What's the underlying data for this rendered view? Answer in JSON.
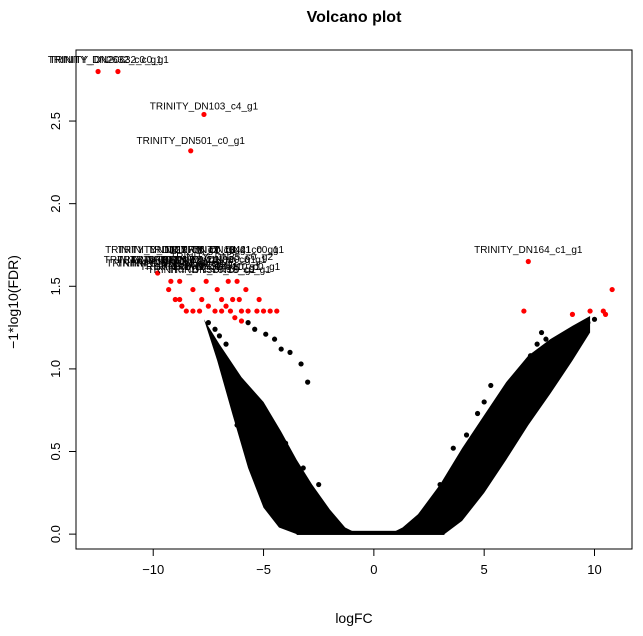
{
  "chart_data": {
    "type": "scatter",
    "title": "Volcano plot",
    "xlabel": "logFC",
    "ylabel": "−1*log10(FDR)",
    "xlim": [
      -13.5,
      11.7
    ],
    "ylim": [
      -0.09,
      2.93
    ],
    "xticks": [
      -10,
      -5,
      0,
      5,
      10
    ],
    "yticks": [
      0.0,
      0.5,
      1.0,
      1.5,
      2.0,
      2.5
    ],
    "xtick_labels": [
      "−10",
      "−5",
      "0",
      "5",
      "10"
    ],
    "ytick_labels": [
      "0.0",
      "0.5",
      "1.0",
      "1.5",
      "2.0",
      "2.5"
    ],
    "grid": false,
    "legend": "none",
    "colors": {
      "significant": "#ff0000",
      "nonsignificant": "#000000"
    },
    "significant_points": [
      {
        "x": -12.5,
        "y": 2.8
      },
      {
        "x": -11.6,
        "y": 2.8
      },
      {
        "x": -7.7,
        "y": 2.54
      },
      {
        "x": -8.3,
        "y": 2.32
      },
      {
        "x": 7.0,
        "y": 1.65
      },
      {
        "x": -9.8,
        "y": 1.58
      },
      {
        "x": -9.2,
        "y": 1.53
      },
      {
        "x": -8.8,
        "y": 1.53
      },
      {
        "x": -7.6,
        "y": 1.53
      },
      {
        "x": -6.6,
        "y": 1.53
      },
      {
        "x": -6.2,
        "y": 1.53
      },
      {
        "x": -9.3,
        "y": 1.48
      },
      {
        "x": -8.2,
        "y": 1.48
      },
      {
        "x": -7.1,
        "y": 1.48
      },
      {
        "x": -5.8,
        "y": 1.48
      },
      {
        "x": -9.0,
        "y": 1.42
      },
      {
        "x": -8.8,
        "y": 1.42
      },
      {
        "x": -7.8,
        "y": 1.42
      },
      {
        "x": -6.9,
        "y": 1.42
      },
      {
        "x": -6.4,
        "y": 1.42
      },
      {
        "x": -6.1,
        "y": 1.42
      },
      {
        "x": -5.2,
        "y": 1.42
      },
      {
        "x": -8.7,
        "y": 1.38
      },
      {
        "x": -7.5,
        "y": 1.38
      },
      {
        "x": -6.7,
        "y": 1.38
      },
      {
        "x": -8.5,
        "y": 1.35
      },
      {
        "x": -8.2,
        "y": 1.35
      },
      {
        "x": -7.9,
        "y": 1.35
      },
      {
        "x": -7.2,
        "y": 1.35
      },
      {
        "x": -6.9,
        "y": 1.35
      },
      {
        "x": -6.5,
        "y": 1.35
      },
      {
        "x": -6.0,
        "y": 1.35
      },
      {
        "x": -5.7,
        "y": 1.35
      },
      {
        "x": -5.3,
        "y": 1.35
      },
      {
        "x": -5.0,
        "y": 1.35
      },
      {
        "x": -4.7,
        "y": 1.35
      },
      {
        "x": -4.4,
        "y": 1.35
      },
      {
        "x": -6.3,
        "y": 1.31
      },
      {
        "x": -6.0,
        "y": 1.29
      },
      {
        "x": 6.8,
        "y": 1.35
      },
      {
        "x": 9.0,
        "y": 1.33
      },
      {
        "x": 9.8,
        "y": 1.35
      },
      {
        "x": 10.4,
        "y": 1.35
      },
      {
        "x": 10.5,
        "y": 1.33
      },
      {
        "x": 10.8,
        "y": 1.48
      }
    ],
    "nonsignificant_outliers": [
      {
        "x": -7.5,
        "y": 1.28
      },
      {
        "x": -7.2,
        "y": 1.24
      },
      {
        "x": -7.0,
        "y": 1.2
      },
      {
        "x": -6.7,
        "y": 1.15
      },
      {
        "x": -5.7,
        "y": 1.28
      },
      {
        "x": -5.4,
        "y": 1.24
      },
      {
        "x": -4.9,
        "y": 1.21
      },
      {
        "x": -4.5,
        "y": 1.18
      },
      {
        "x": -4.2,
        "y": 1.12
      },
      {
        "x": -3.8,
        "y": 1.1
      },
      {
        "x": -3.3,
        "y": 1.03
      },
      {
        "x": -3.0,
        "y": 0.92
      },
      {
        "x": -6.2,
        "y": 0.66
      },
      {
        "x": -5.5,
        "y": 0.66
      },
      {
        "x": -5.0,
        "y": 0.6
      },
      {
        "x": -4.0,
        "y": 0.55
      },
      {
        "x": -3.2,
        "y": 0.4
      },
      {
        "x": -2.5,
        "y": 0.3
      },
      {
        "x": 3.0,
        "y": 0.3
      },
      {
        "x": 2.6,
        "y": 0.15
      },
      {
        "x": 3.6,
        "y": 0.52
      },
      {
        "x": 4.2,
        "y": 0.6
      },
      {
        "x": 4.0,
        "y": 0.36
      },
      {
        "x": 5.0,
        "y": 0.5
      },
      {
        "x": 5.5,
        "y": 0.72
      },
      {
        "x": 5.8,
        "y": 0.82
      },
      {
        "x": 6.0,
        "y": 0.75
      },
      {
        "x": 6.3,
        "y": 0.88
      },
      {
        "x": 6.6,
        "y": 0.95
      },
      {
        "x": 6.9,
        "y": 1.02
      },
      {
        "x": 7.1,
        "y": 1.08
      },
      {
        "x": 7.4,
        "y": 1.15
      },
      {
        "x": 7.6,
        "y": 1.22
      },
      {
        "x": 7.8,
        "y": 1.18
      },
      {
        "x": 8.0,
        "y": 1.05
      },
      {
        "x": 8.4,
        "y": 1.0
      },
      {
        "x": 8.7,
        "y": 1.08
      },
      {
        "x": 8.9,
        "y": 1.12
      },
      {
        "x": 9.2,
        "y": 1.22
      },
      {
        "x": 9.4,
        "y": 1.25
      },
      {
        "x": 9.7,
        "y": 1.28
      },
      {
        "x": 10.0,
        "y": 1.3
      },
      {
        "x": 5.3,
        "y": 0.9
      },
      {
        "x": 5.0,
        "y": 0.8
      },
      {
        "x": 4.7,
        "y": 0.73
      },
      {
        "x": 7.3,
        "y": 0.98
      },
      {
        "x": 7.7,
        "y": 1.1
      },
      {
        "x": 8.2,
        "y": 1.15
      },
      {
        "x": -2.8,
        "y": 0.2
      },
      {
        "x": 2.2,
        "y": 0.08
      }
    ],
    "envelope": {
      "note_left_upper": "upper boundary of dense region, left side",
      "left_upper": [
        [
          -7.7,
          1.3
        ],
        [
          -7.0,
          1.15
        ],
        [
          -6.0,
          0.95
        ],
        [
          -5.0,
          0.8
        ],
        [
          -4.2,
          0.62
        ],
        [
          -3.5,
          0.45
        ],
        [
          -2.8,
          0.3
        ],
        [
          -2.0,
          0.15
        ],
        [
          -1.3,
          0.04
        ],
        [
          -0.7,
          0.0
        ]
      ],
      "left_lower": [
        [
          -7.7,
          1.3
        ],
        [
          -7.1,
          1.05
        ],
        [
          -6.4,
          0.72
        ],
        [
          -5.7,
          0.4
        ],
        [
          -5.0,
          0.16
        ],
        [
          -4.3,
          0.04
        ],
        [
          -3.5,
          0.0
        ]
      ],
      "right_upper": [
        [
          0.7,
          0.0
        ],
        [
          1.3,
          0.04
        ],
        [
          2.0,
          0.12
        ],
        [
          3.0,
          0.3
        ],
        [
          4.0,
          0.52
        ],
        [
          5.0,
          0.72
        ],
        [
          6.0,
          0.92
        ],
        [
          7.0,
          1.08
        ],
        [
          8.0,
          1.18
        ],
        [
          9.0,
          1.26
        ],
        [
          9.8,
          1.32
        ]
      ],
      "right_lower": [
        [
          3.2,
          0.0
        ],
        [
          4.0,
          0.08
        ],
        [
          5.0,
          0.25
        ],
        [
          6.0,
          0.45
        ],
        [
          7.0,
          0.66
        ],
        [
          8.0,
          0.85
        ],
        [
          9.0,
          1.05
        ],
        [
          9.8,
          1.22
        ]
      ]
    },
    "annotations": [
      {
        "text": "TRINITY_DN2632_c0_g1",
        "x": -12.2,
        "y": 2.85
      },
      {
        "text": "TRINITY_DN20632_c0_g1",
        "x": -12.0,
        "y": 2.85
      },
      {
        "text": "TRINITY_DN103_c4_g1",
        "x": -7.7,
        "y": 2.57
      },
      {
        "text": "TRINITY_DN501_c0_g1",
        "x": -8.3,
        "y": 2.36
      },
      {
        "text": "TRINITY_DN164_c1_g1",
        "x": 7.0,
        "y": 1.7
      },
      {
        "text": "TRINITY_DN1327_c0_g1",
        "x": -9.6,
        "y": 1.7
      },
      {
        "text": "TRINITY_DN12776_c0_g1",
        "x": -8.9,
        "y": 1.7
      },
      {
        "text": "TRINITY_DN77_c0_g1",
        "x": -7.9,
        "y": 1.7
      },
      {
        "text": "TRINITY_DN1344_c0_g1",
        "x": -6.9,
        "y": 1.7
      },
      {
        "text": "TRINITY_DN21_c0_g1",
        "x": -6.4,
        "y": 1.7
      },
      {
        "text": "TRINITY_DN35_c0_g2",
        "x": -6.9,
        "y": 1.66
      },
      {
        "text": "TRINITY_DN511_c0_g1",
        "x": -9.8,
        "y": 1.64
      },
      {
        "text": "TRINITY_DN46_c0_g1",
        "x": -9.3,
        "y": 1.64
      },
      {
        "text": "TRINITY_DN67_c1_g1",
        "x": -8.7,
        "y": 1.64
      },
      {
        "text": "TRINITY_DN241_c0_g1",
        "x": -7.8,
        "y": 1.64
      },
      {
        "text": "TRINITY_DN80_c0_g1",
        "x": -7.2,
        "y": 1.64
      },
      {
        "text": "TRINITY_DN83_c0_g1",
        "x": -9.8,
        "y": 1.62
      },
      {
        "text": "TRINITY_DN145_c0_g1",
        "x": -9.2,
        "y": 1.62
      },
      {
        "text": "TRINITY_DN158_c0_g1",
        "x": -8.6,
        "y": 1.62
      },
      {
        "text": "TRINITY_DN9_c0_g1",
        "x": -8.4,
        "y": 1.6
      },
      {
        "text": "TRINITY_DN374_c0_g1",
        "x": -7.6,
        "y": 1.6
      },
      {
        "text": "TRINITY_DN410_c0_g1",
        "x": -6.7,
        "y": 1.6
      },
      {
        "text": "TRINITY_DN376_c0_g1",
        "x": -7.8,
        "y": 1.58
      },
      {
        "text": "TRINITY_DN18_c0_g1",
        "x": -7.0,
        "y": 1.58
      }
    ]
  }
}
